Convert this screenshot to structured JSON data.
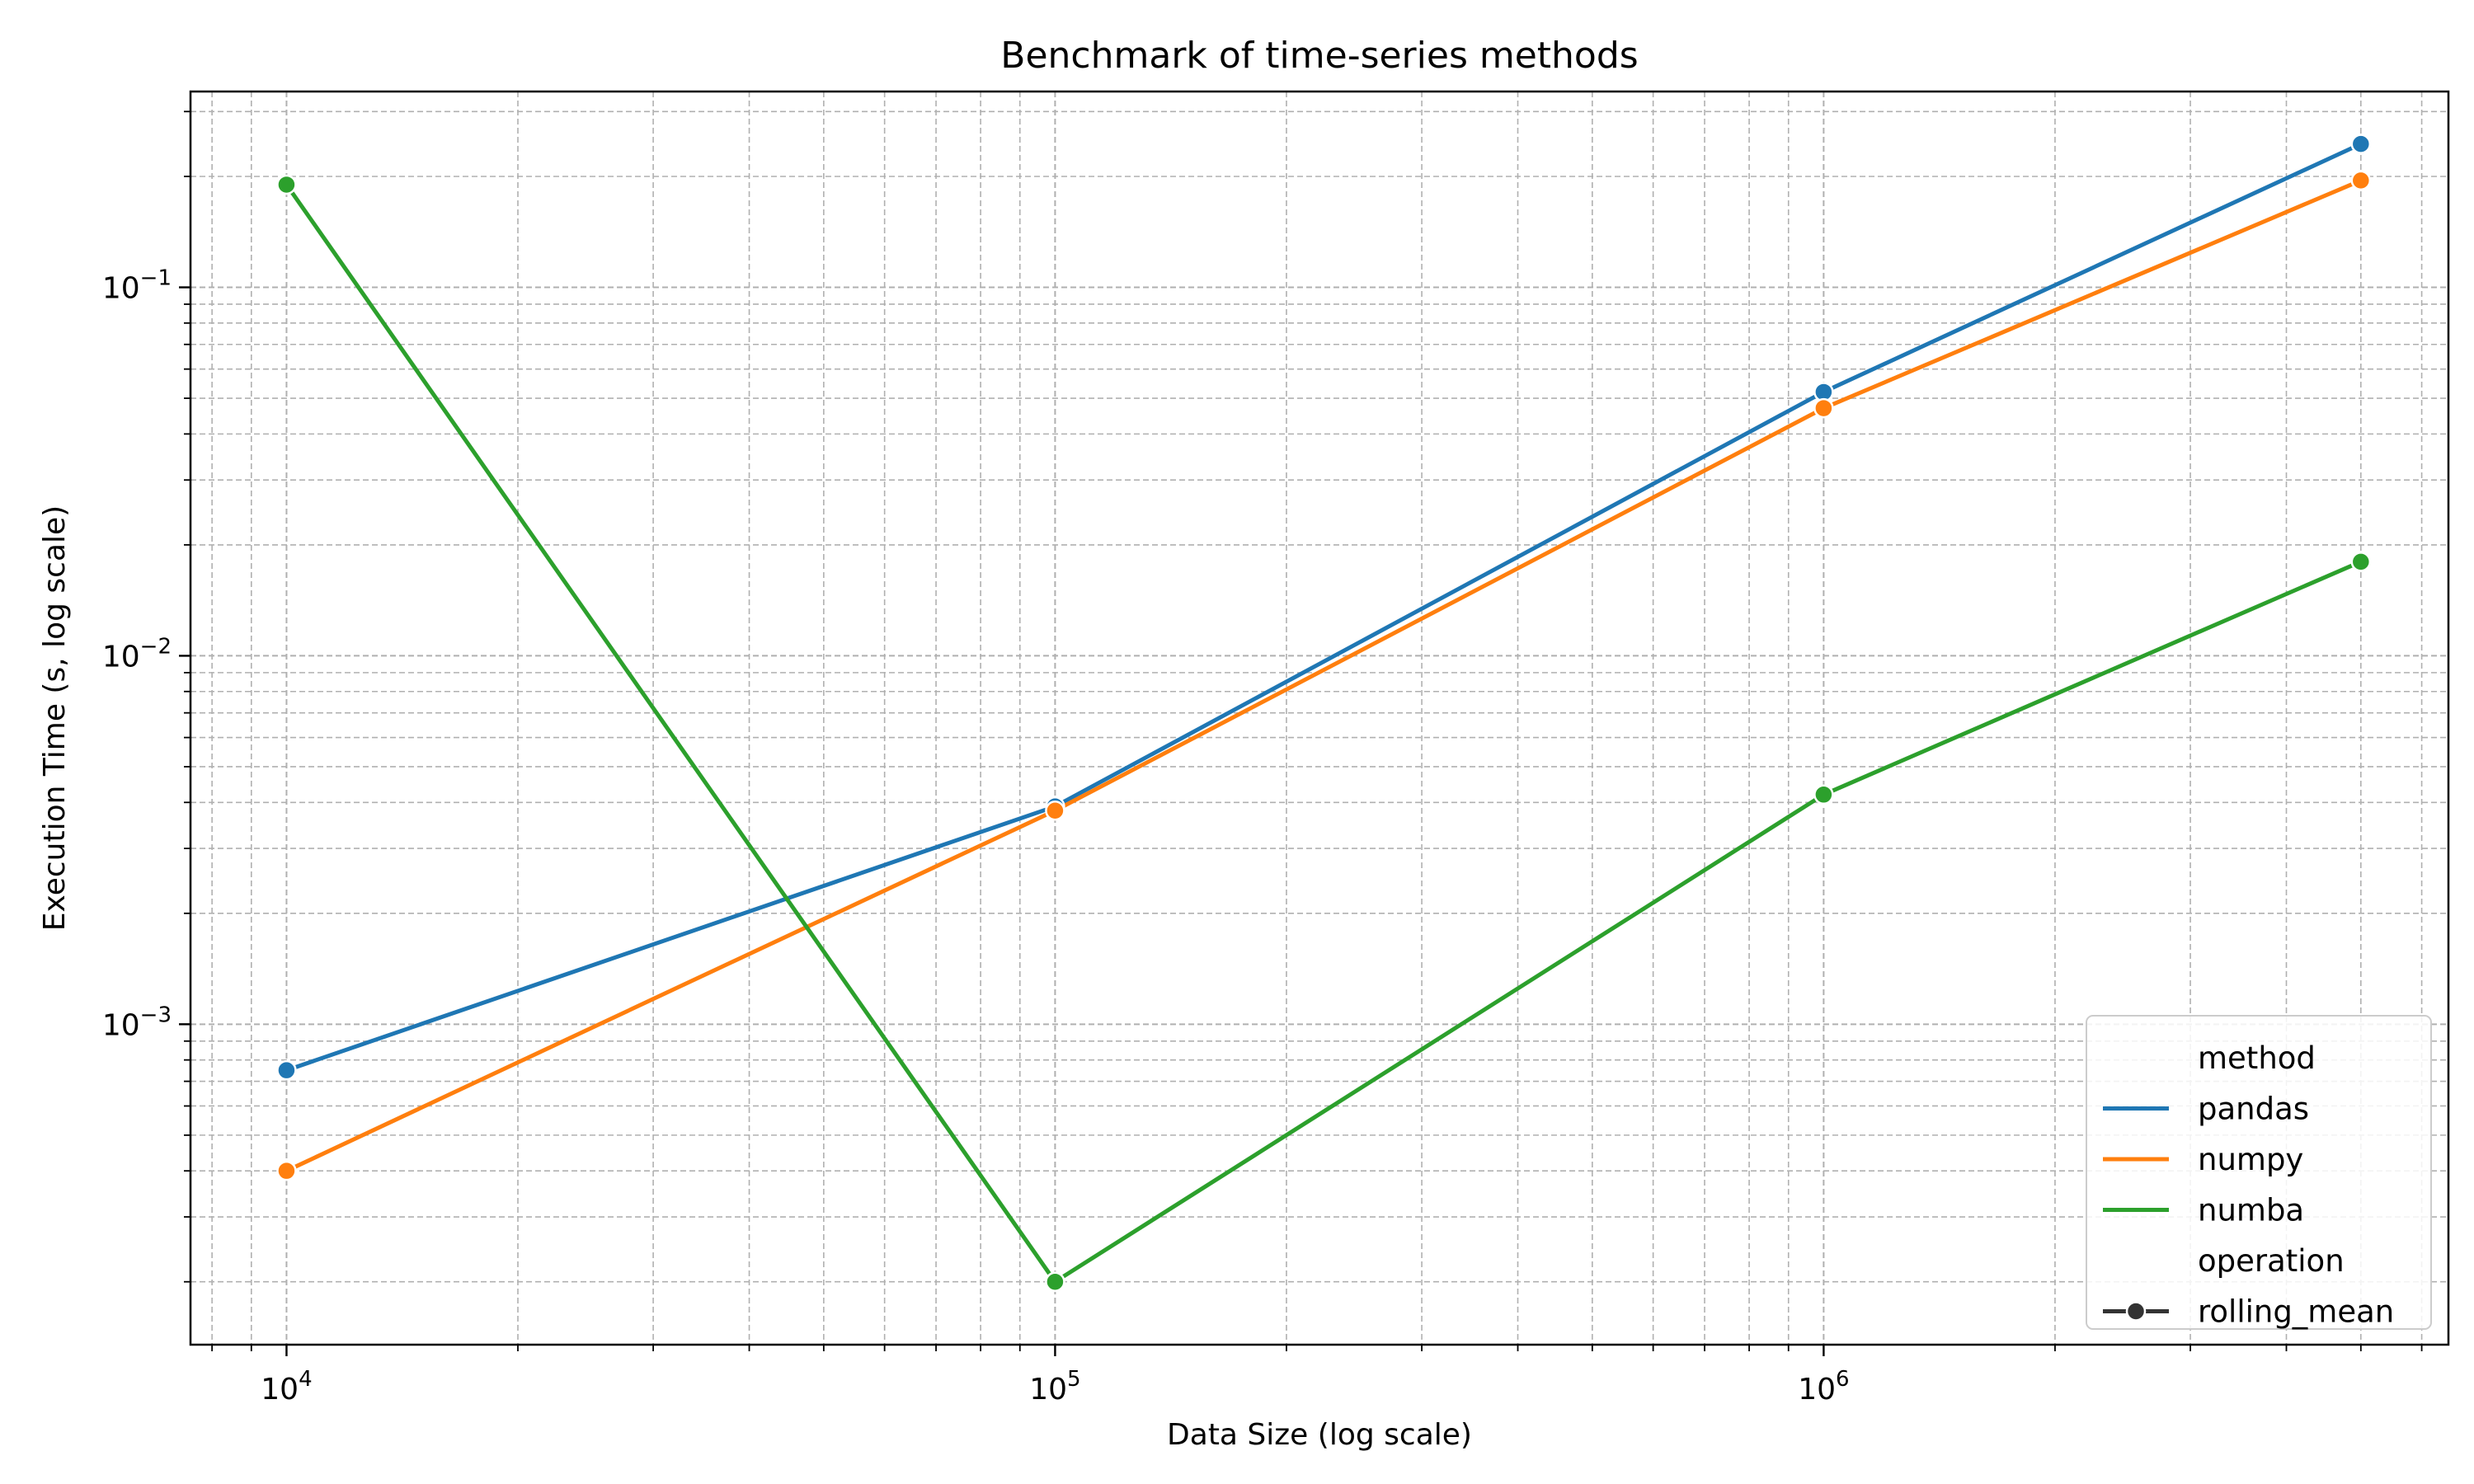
{
  "chart_data": {
    "type": "line",
    "title": "Benchmark of time-series methods",
    "xlabel": "Data Size (log scale)",
    "ylabel": "Execution Time (s, log scale)",
    "xscale": "log",
    "yscale": "log",
    "xlim": [
      7500,
      6500000
    ],
    "ylim": [
      0.000135,
      0.34
    ],
    "grid": true,
    "x_ticks": [
      {
        "base": "10",
        "exp": "4",
        "value": 10000
      },
      {
        "base": "10",
        "exp": "5",
        "value": 100000
      },
      {
        "base": "10",
        "exp": "6",
        "value": 1000000
      }
    ],
    "y_ticks": [
      {
        "base": "10",
        "exp": "−3",
        "value": 0.001
      },
      {
        "base": "10",
        "exp": "−2",
        "value": 0.01
      },
      {
        "base": "10",
        "exp": "−1",
        "value": 0.1
      }
    ],
    "x": [
      10000,
      100000,
      1000000,
      5000000
    ],
    "series": [
      {
        "name": "pandas",
        "color": "#1f77b4",
        "values": [
          0.00075,
          0.0039,
          0.052,
          0.245
        ]
      },
      {
        "name": "numpy",
        "color": "#ff7f0e",
        "values": [
          0.0004,
          0.0038,
          0.047,
          0.195
        ]
      },
      {
        "name": "numba",
        "color": "#2ca02c",
        "values": [
          0.19,
          0.0002,
          0.0042,
          0.018
        ]
      }
    ],
    "legend": {
      "placement": "lower-right",
      "hue_title": "method",
      "style_title": "operation",
      "style_entries": [
        {
          "name": "rolling_mean",
          "color": "#333333"
        }
      ]
    }
  }
}
